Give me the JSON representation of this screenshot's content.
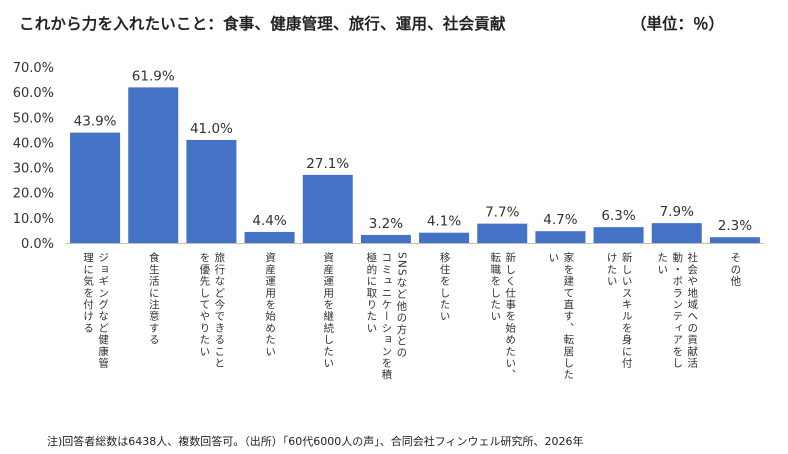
{
  "title": "これから力を入れたいこと：食事、健康管理、旅行、運用、社会貢献",
  "unit": "（単位：％）",
  "footnote": "注)回答者総数は6438人、複数回答可。（出所）「60代6000人の声」、合同会社フィンウェル研究所、2026年",
  "chart_data": {
    "type": "bar",
    "title": "これから力を入れたいこと：食事、健康管理、旅行、運用、社会貢献",
    "ylabel": "",
    "xlabel": "",
    "ylim": [
      0,
      70
    ],
    "yticks": [
      "0.0%",
      "10.0%",
      "20.0%",
      "30.0%",
      "40.0%",
      "50.0%",
      "60.0%",
      "70.0%"
    ],
    "grid": false,
    "bar_color": "#4472C4",
    "categories": [
      "ジョギングなど健康管理に気を付ける",
      "食生活に注意する",
      "旅行など今できることを優先してやりたい",
      "資産運用を始めたい",
      "資産運用を継続したい",
      "SNSなど他の方とのコミュニケーションを積極的に取りたい",
      "移住をしたい",
      "新しく仕事を始めたい、転職をしたい",
      "家を建て直す、転居したい",
      "新しいスキルを身に付けたい",
      "社会や地域への貢献活動・ボランティアをしたい",
      "その他"
    ],
    "category_label_lines": [
      [
        "ジョギングなど健康管",
        "理に気を付ける"
      ],
      [
        "食生活に注意する"
      ],
      [
        "旅行など今できること",
        "を優先してやりたい"
      ],
      [
        "資産運用を始めたい"
      ],
      [
        "資産運用を継続したい"
      ],
      [
        "SNSなど他の方との",
        "コミュニケーションを積",
        "極的に取りたい"
      ],
      [
        "移住をしたい"
      ],
      [
        "新しく仕事を始めたい、",
        "転職をしたい"
      ],
      [
        "家を建て直す、転居した",
        "い"
      ],
      [
        "新しいスキルを身に付",
        "けたい"
      ],
      [
        "社会や地域への貢献活",
        "動・ボランティアをし",
        "たい"
      ],
      [
        "その他"
      ]
    ],
    "values": [
      43.9,
      61.9,
      41.0,
      4.4,
      27.1,
      3.2,
      4.1,
      7.7,
      4.7,
      6.3,
      7.9,
      2.3
    ],
    "value_labels": [
      "43.9%",
      "61.9%",
      "41.0%",
      "4.4%",
      "27.1%",
      "3.2%",
      "4.1%",
      "7.7%",
      "4.7%",
      "6.3%",
      "7.9%",
      "2.3%"
    ]
  }
}
